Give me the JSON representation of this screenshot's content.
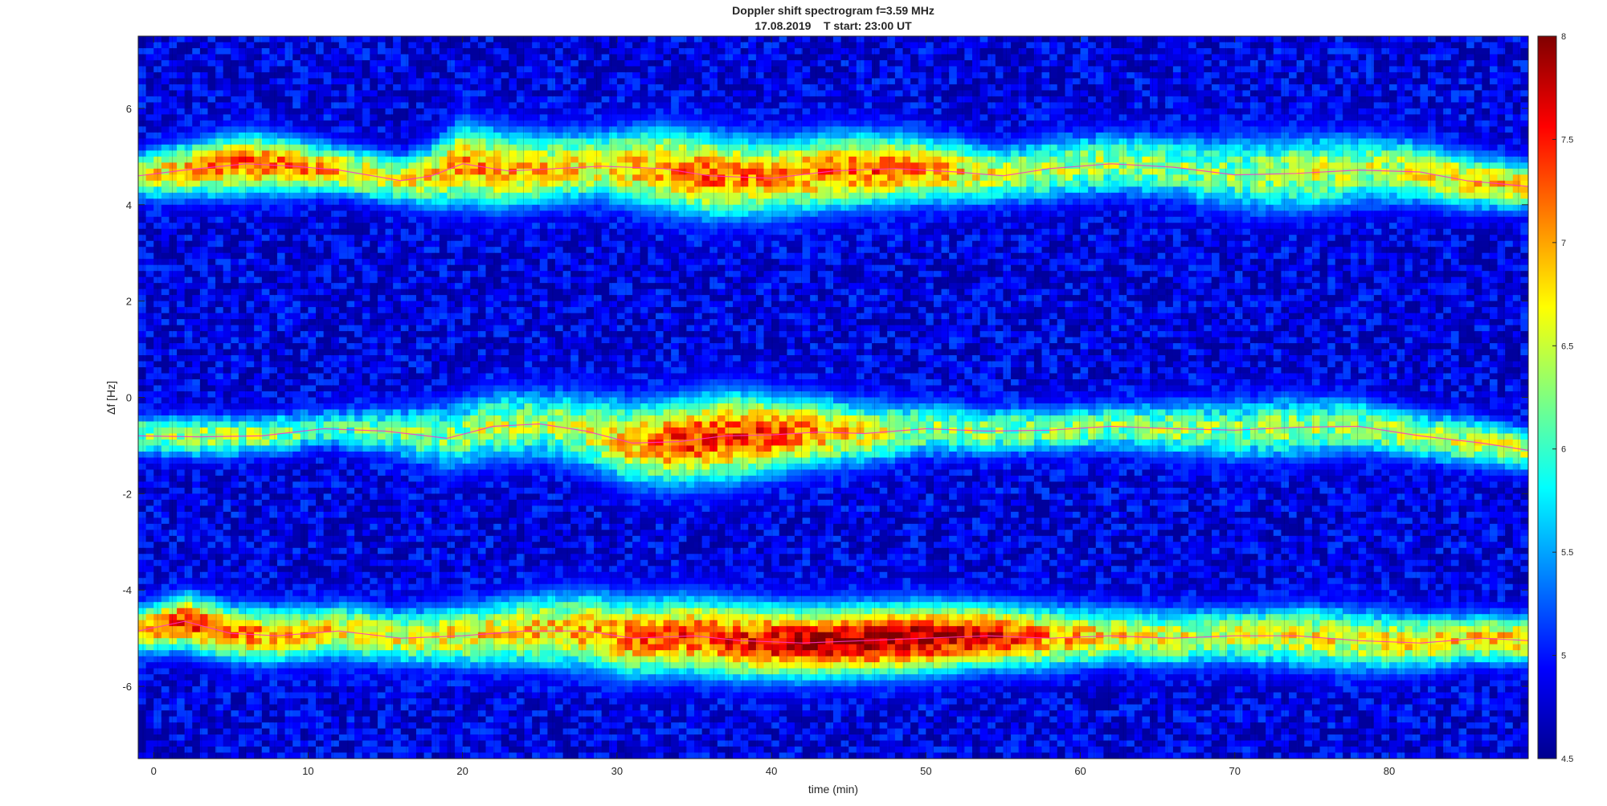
{
  "chart_data": {
    "type": "heatmap",
    "title_line1": "Doppler shift spectrogram f=3.59 MHz",
    "title_line2": "17.08.2019    T start: 23:00 UT",
    "xlabel": "time (min)",
    "ylabel": "Δf [Hz]",
    "xlim": [
      -1,
      89
    ],
    "ylim": [
      -7.5,
      7.5
    ],
    "xticks": [
      0,
      10,
      20,
      30,
      40,
      50,
      60,
      70,
      80
    ],
    "yticks": [
      6,
      4,
      2,
      0,
      -2,
      -4,
      -6
    ],
    "colorbar": {
      "limits": [
        4.5,
        8
      ],
      "ticks": [
        8,
        7.5,
        7,
        6.5,
        6,
        5.5,
        5,
        4.5
      ],
      "colormap": "jet"
    },
    "grid": false,
    "traces": [
      {
        "x": [
          -1,
          2,
          6,
          9,
          12,
          16,
          18,
          20,
          23,
          26,
          29,
          33,
          36,
          40,
          44,
          48,
          52,
          55,
          58,
          62,
          66,
          70,
          74,
          78,
          82,
          85,
          89
        ],
        "y": [
          4.6,
          4.72,
          4.85,
          4.8,
          4.72,
          4.5,
          4.6,
          4.85,
          4.7,
          4.75,
          4.8,
          4.75,
          4.6,
          4.55,
          4.7,
          4.75,
          4.68,
          4.6,
          4.75,
          4.85,
          4.78,
          4.62,
          4.65,
          4.72,
          4.68,
          4.5,
          4.38
        ],
        "intensity": [
          6.5,
          6.9,
          7.2,
          7.1,
          6.8,
          6.6,
          6.8,
          7.0,
          6.9,
          6.8,
          6.7,
          7.0,
          7.2,
          7.0,
          7.1,
          7.2,
          6.8,
          6.5,
          6.4,
          6.3,
          6.3,
          6.2,
          6.5,
          6.4,
          6.6,
          6.7,
          6.8
        ],
        "spread": [
          0.35,
          0.4,
          0.45,
          0.4,
          0.35,
          0.35,
          0.45,
          0.6,
          0.55,
          0.5,
          0.5,
          0.6,
          0.6,
          0.55,
          0.55,
          0.5,
          0.45,
          0.4,
          0.45,
          0.45,
          0.45,
          0.55,
          0.55,
          0.5,
          0.45,
          0.4,
          0.35
        ]
      },
      {
        "x": [
          -1,
          3,
          7,
          11,
          15,
          19,
          22,
          25,
          28,
          31,
          34,
          37,
          40,
          43,
          46,
          50,
          54,
          58,
          62,
          66,
          70,
          74,
          78,
          82,
          86,
          89
        ],
        "y": [
          -0.8,
          -0.82,
          -0.8,
          -0.65,
          -0.7,
          -0.85,
          -0.6,
          -0.55,
          -0.7,
          -0.95,
          -0.92,
          -0.8,
          -0.78,
          -0.72,
          -0.75,
          -0.65,
          -0.7,
          -0.68,
          -0.6,
          -0.65,
          -0.68,
          -0.62,
          -0.6,
          -0.8,
          -0.95,
          -1.1
        ],
        "intensity": [
          6.3,
          6.4,
          6.3,
          6.0,
          6.1,
          6.2,
          6.4,
          6.3,
          6.5,
          6.9,
          7.4,
          7.3,
          7.4,
          7.0,
          6.6,
          6.3,
          6.3,
          6.2,
          6.2,
          6.3,
          6.2,
          6.3,
          6.3,
          6.4,
          6.5,
          6.6
        ],
        "spread": [
          0.3,
          0.3,
          0.3,
          0.3,
          0.35,
          0.5,
          0.5,
          0.5,
          0.55,
          0.6,
          0.6,
          0.65,
          0.55,
          0.5,
          0.45,
          0.4,
          0.35,
          0.35,
          0.35,
          0.4,
          0.45,
          0.45,
          0.4,
          0.35,
          0.35,
          0.3
        ]
      },
      {
        "x": [
          -1,
          2,
          5,
          8,
          12,
          16,
          20,
          24,
          28,
          31,
          35,
          38,
          42,
          46,
          50,
          54,
          58,
          62,
          66,
          70,
          74,
          78,
          82,
          86,
          89
        ],
        "y": [
          -4.85,
          -4.65,
          -4.9,
          -4.95,
          -4.85,
          -5.0,
          -4.95,
          -4.85,
          -4.85,
          -5.0,
          -4.95,
          -5.05,
          -5.1,
          -5.05,
          -5.0,
          -4.95,
          -5.0,
          -4.95,
          -5.0,
          -4.95,
          -4.95,
          -5.05,
          -5.1,
          -5.0,
          -5.05
        ],
        "intensity": [
          6.8,
          7.4,
          7.2,
          6.9,
          6.7,
          6.6,
          6.7,
          6.8,
          6.9,
          7.2,
          7.3,
          7.4,
          7.8,
          7.9,
          7.8,
          7.6,
          7.0,
          6.7,
          6.6,
          6.5,
          6.6,
          6.6,
          6.7,
          6.8,
          6.8
        ],
        "spread": [
          0.35,
          0.4,
          0.4,
          0.4,
          0.4,
          0.4,
          0.45,
          0.5,
          0.55,
          0.55,
          0.55,
          0.55,
          0.5,
          0.5,
          0.5,
          0.45,
          0.45,
          0.4,
          0.4,
          0.4,
          0.45,
          0.45,
          0.4,
          0.35,
          0.35
        ]
      }
    ]
  }
}
